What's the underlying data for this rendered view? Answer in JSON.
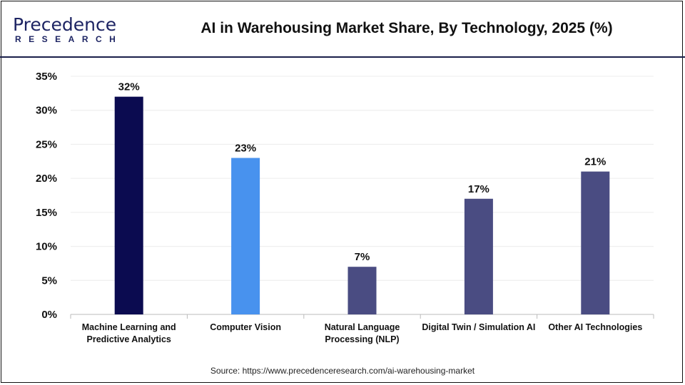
{
  "brand": {
    "line1": "Precedence",
    "line2": "RESEARCH"
  },
  "title": "AI in Warehousing Market Share, By Technology, 2025 (%)",
  "source": "Source: https://www.precedenceresearch.com/ai-warehousing-market",
  "chart_data": {
    "type": "bar",
    "title": "AI in Warehousing Market Share, By Technology, 2025 (%)",
    "categories": [
      "Machine Learning and Predictive Analytics",
      "Computer Vision",
      "Natural Language Processing (NLP)",
      "Digital Twin / Simulation AI",
      "Other AI Technologies"
    ],
    "values": [
      32,
      23,
      7,
      17,
      21
    ],
    "data_labels": [
      "32%",
      "23%",
      "7%",
      "17%",
      "21%"
    ],
    "colors": [
      "#0b0b50",
      "#4892ee",
      "#4a4c82",
      "#4a4c82",
      "#4a4c82"
    ],
    "ylim": [
      0,
      35
    ],
    "yticks": [
      "0%",
      "5%",
      "10%",
      "15%",
      "20%",
      "25%",
      "30%",
      "35%"
    ],
    "grid": true,
    "xlabel": "",
    "ylabel": ""
  }
}
